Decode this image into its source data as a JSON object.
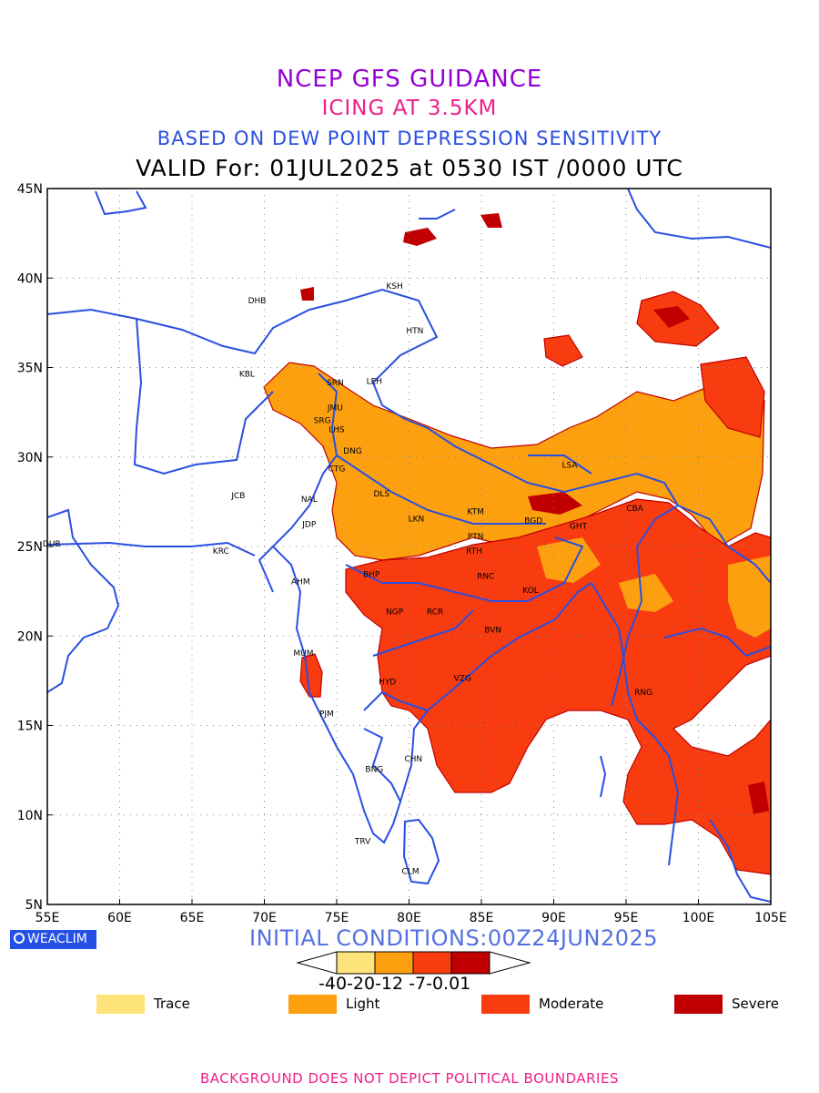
{
  "titles": {
    "line1": "NCEP GFS GUIDANCE",
    "line2": "ICING AT 3.5KM",
    "line3": "BASED ON DEW POINT DEPRESSION SENSITIVITY",
    "line4": "VALID For: 01JUL2025 at 0530 IST /0000 UTC"
  },
  "axes": {
    "lon_labels": [
      "55E",
      "60E",
      "65E",
      "70E",
      "75E",
      "80E",
      "85E",
      "90E",
      "95E",
      "100E",
      "105E"
    ],
    "lat_labels": [
      "45N",
      "40N",
      "35N",
      "30N",
      "25N",
      "20N",
      "15N",
      "10N",
      "5N"
    ]
  },
  "stations": [
    {
      "code": "KSH",
      "lon": 79.0,
      "lat": 39.6
    },
    {
      "code": "DHB",
      "lon": 69.5,
      "lat": 38.8
    },
    {
      "code": "HTN",
      "lon": 80.4,
      "lat": 37.1
    },
    {
      "code": "KBL",
      "lon": 68.8,
      "lat": 34.7
    },
    {
      "code": "SRN",
      "lon": 74.9,
      "lat": 34.2
    },
    {
      "code": "LEH",
      "lon": 77.6,
      "lat": 34.3
    },
    {
      "code": "JMU",
      "lon": 74.9,
      "lat": 32.8
    },
    {
      "code": "SRG",
      "lon": 74.0,
      "lat": 32.1
    },
    {
      "code": "LHS",
      "lon": 75.0,
      "lat": 31.6
    },
    {
      "code": "DNG",
      "lon": 76.1,
      "lat": 30.4
    },
    {
      "code": "CTG",
      "lon": 75.0,
      "lat": 29.4
    },
    {
      "code": "JCB",
      "lon": 68.2,
      "lat": 27.9
    },
    {
      "code": "DLS",
      "lon": 78.1,
      "lat": 28.0
    },
    {
      "code": "NAL",
      "lon": 73.1,
      "lat": 27.7
    },
    {
      "code": "LSA",
      "lon": 91.1,
      "lat": 29.6
    },
    {
      "code": "KTM",
      "lon": 84.6,
      "lat": 27.0
    },
    {
      "code": "CBA",
      "lon": 95.6,
      "lat": 27.2
    },
    {
      "code": "LKN",
      "lon": 80.5,
      "lat": 26.6
    },
    {
      "code": "BGD",
      "lon": 88.6,
      "lat": 26.5
    },
    {
      "code": "JDP",
      "lon": 73.1,
      "lat": 26.3
    },
    {
      "code": "GHT",
      "lon": 91.7,
      "lat": 26.2
    },
    {
      "code": "PTN",
      "lon": 84.6,
      "lat": 25.6
    },
    {
      "code": "DUB",
      "lon": 55.3,
      "lat": 25.2
    },
    {
      "code": "KRC",
      "lon": 67.0,
      "lat": 24.8
    },
    {
      "code": "RTH",
      "lon": 84.5,
      "lat": 24.8
    },
    {
      "code": "BHP",
      "lon": 77.4,
      "lat": 23.5
    },
    {
      "code": "AHM",
      "lon": 72.5,
      "lat": 23.1
    },
    {
      "code": "RNC",
      "lon": 85.3,
      "lat": 23.4
    },
    {
      "code": "KOL",
      "lon": 88.4,
      "lat": 22.6
    },
    {
      "code": "NGP",
      "lon": 79.0,
      "lat": 21.4
    },
    {
      "code": "RCR",
      "lon": 81.8,
      "lat": 21.4
    },
    {
      "code": "BVN",
      "lon": 85.8,
      "lat": 20.4
    },
    {
      "code": "MUM",
      "lon": 72.7,
      "lat": 19.1
    },
    {
      "code": "HYD",
      "lon": 78.5,
      "lat": 17.5
    },
    {
      "code": "VZG",
      "lon": 83.7,
      "lat": 17.7
    },
    {
      "code": "RNG",
      "lon": 96.2,
      "lat": 16.9
    },
    {
      "code": "PJM",
      "lon": 74.3,
      "lat": 15.7
    },
    {
      "code": "CHN",
      "lon": 80.3,
      "lat": 13.2
    },
    {
      "code": "BNG",
      "lon": 77.6,
      "lat": 12.6
    },
    {
      "code": "TRV",
      "lon": 76.8,
      "lat": 8.6
    },
    {
      "code": "CLM",
      "lon": 80.1,
      "lat": 6.9
    }
  ],
  "logo": "WEACLIM",
  "initial_conditions": "INITIAL CONDITIONS:00Z24JUN2025",
  "colorbar": {
    "ticks": "-40-20-12 -7-0.01",
    "colors": [
      "#fee37a",
      "#fda010",
      "#f83c10",
      "#c00000"
    ]
  },
  "legend": [
    {
      "label": "Trace",
      "color": "#fee37a"
    },
    {
      "label": "Light",
      "color": "#fda010"
    },
    {
      "label": "Moderate",
      "color": "#f83c10"
    },
    {
      "label": "Severe",
      "color": "#c00000"
    }
  ],
  "disclaimer": "BACKGROUND DOES NOT DEPICT POLITICAL BOUNDARIES",
  "map_colors": {
    "coast": "#2a4fe0",
    "grid": "#888888"
  }
}
